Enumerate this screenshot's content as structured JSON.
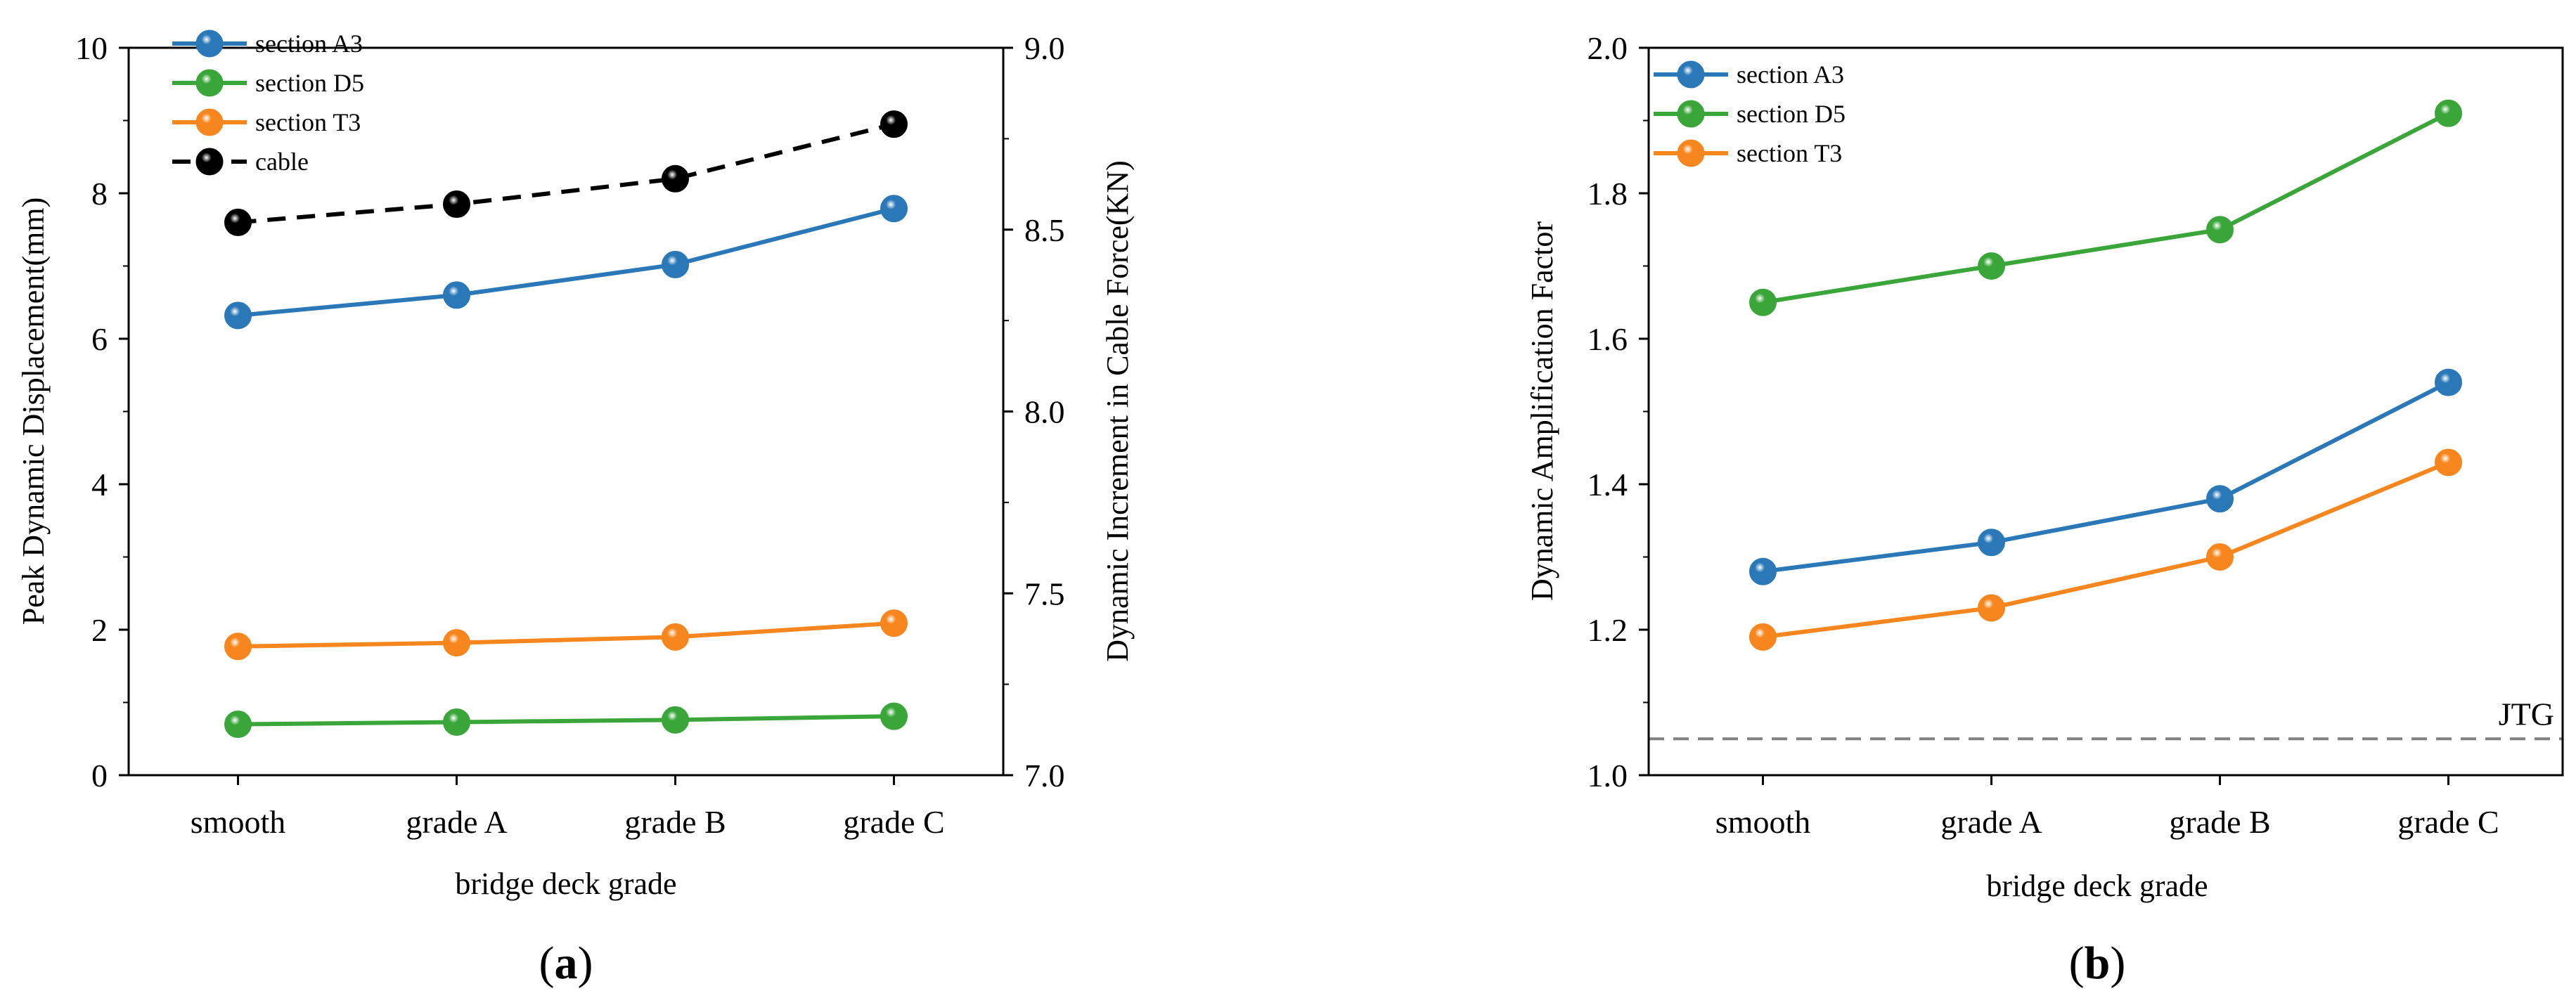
{
  "chart_data": [
    {
      "type": "line",
      "panel_label": "(a)",
      "panel_letter": "a",
      "xlabel": "bridge deck grade",
      "ylabel": "Peak Dynamic Displacement(mm)",
      "y2label": "Dynamic Increment in Cable Force(KN)",
      "categories": [
        "smooth",
        "grade A",
        "grade B",
        "grade C"
      ],
      "ylim": [
        0,
        10
      ],
      "yticks": [
        0,
        2,
        4,
        6,
        8,
        10
      ],
      "ytick_labels": [
        "0",
        "2",
        "4",
        "6",
        "8",
        "10"
      ],
      "y2lim": [
        7.0,
        9.0
      ],
      "y2ticks": [
        7.0,
        7.5,
        8.0,
        8.5,
        9.0
      ],
      "y2tick_labels": [
        "7.0",
        "7.5",
        "8.0",
        "8.5",
        "9.0"
      ],
      "legend_position": "top-left",
      "series": [
        {
          "name": "section A3",
          "axis": "left",
          "color": "#2a78b8",
          "dashed": false,
          "values": [
            6.32,
            6.6,
            7.02,
            7.79
          ]
        },
        {
          "name": "section D5",
          "axis": "left",
          "color": "#3aa63a",
          "dashed": false,
          "values": [
            0.7,
            0.73,
            0.76,
            0.81
          ]
        },
        {
          "name": "section T3",
          "axis": "left",
          "color": "#f7861e",
          "dashed": false,
          "values": [
            1.77,
            1.82,
            1.9,
            2.09
          ]
        },
        {
          "name": "cable",
          "axis": "right",
          "color": "#000000",
          "dashed": true,
          "values": [
            8.52,
            8.57,
            8.64,
            8.79
          ]
        }
      ]
    },
    {
      "type": "line",
      "panel_label": "(b)",
      "panel_letter": "b",
      "xlabel": "bridge deck grade",
      "ylabel": "Dynamic Amplification Factor",
      "categories": [
        "smooth",
        "grade A",
        "grade B",
        "grade C"
      ],
      "ylim": [
        1.0,
        2.0
      ],
      "yticks": [
        1.0,
        1.2,
        1.4,
        1.6,
        1.8,
        2.0
      ],
      "ytick_labels": [
        "1.0",
        "1.2",
        "1.4",
        "1.6",
        "1.8",
        "2.0"
      ],
      "legend_position": "top-left",
      "reference_line": {
        "label": "JTG",
        "value": 1.05,
        "color": "#808080"
      },
      "series": [
        {
          "name": "section A3",
          "color": "#2a78b8",
          "values": [
            1.28,
            1.32,
            1.38,
            1.54
          ]
        },
        {
          "name": "section D5",
          "color": "#3aa63a",
          "values": [
            1.65,
            1.7,
            1.75,
            1.91
          ]
        },
        {
          "name": "section T3",
          "color": "#f7861e",
          "values": [
            1.19,
            1.23,
            1.3,
            1.43
          ]
        }
      ]
    }
  ]
}
